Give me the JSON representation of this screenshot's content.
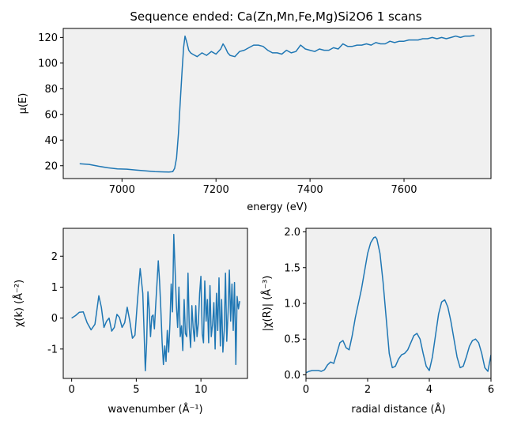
{
  "figure_title": "Sequence ended: Ca(Zn,Mn,Fe,Mg)Si2O6  1 scans",
  "chart_data": [
    {
      "id": "mu",
      "type": "line",
      "xlabel": "energy (eV)",
      "ylabel": "μ(E)",
      "xlim": [
        6875,
        7785
      ],
      "ylim": [
        10,
        127
      ],
      "xticks": [
        7000,
        7200,
        7400,
        7600
      ],
      "yticks": [
        20,
        40,
        60,
        80,
        100,
        120
      ],
      "grid": false,
      "color": "#1f77b4",
      "x": [
        6910,
        6930,
        6950,
        6970,
        6990,
        7010,
        7030,
        7050,
        7070,
        7090,
        7100,
        7108,
        7112,
        7116,
        7120,
        7124,
        7128,
        7131,
        7134,
        7138,
        7142,
        7146,
        7150,
        7160,
        7170,
        7180,
        7190,
        7200,
        7210,
        7215,
        7220,
        7225,
        7230,
        7240,
        7250,
        7260,
        7270,
        7280,
        7290,
        7300,
        7310,
        7320,
        7330,
        7340,
        7350,
        7360,
        7370,
        7380,
        7390,
        7400,
        7410,
        7420,
        7430,
        7440,
        7450,
        7460,
        7470,
        7480,
        7490,
        7500,
        7510,
        7520,
        7530,
        7540,
        7550,
        7560,
        7570,
        7580,
        7590,
        7600,
        7610,
        7620,
        7630,
        7640,
        7650,
        7660,
        7670,
        7680,
        7690,
        7700,
        7710,
        7720,
        7730,
        7740,
        7750
      ],
      "y": [
        21.5,
        21.0,
        19.6,
        18.4,
        17.6,
        17.3,
        16.6,
        16.0,
        15.4,
        15.2,
        15.1,
        15.4,
        18,
        26,
        45,
        70,
        95,
        112,
        121,
        116,
        110,
        108,
        107,
        105,
        108,
        106,
        109,
        107,
        111,
        115,
        112,
        108,
        106,
        105,
        109,
        110,
        112,
        114,
        114,
        113,
        110,
        108,
        108,
        107,
        110,
        108,
        109,
        114,
        111,
        110,
        109,
        111,
        110,
        110,
        112,
        111,
        115,
        113,
        113,
        114,
        114,
        115,
        114,
        116,
        115,
        115,
        117,
        116,
        117,
        117,
        118,
        118,
        118,
        119,
        119,
        120,
        119,
        120,
        119,
        120,
        121,
        120,
        121,
        121,
        121.5
      ]
    },
    {
      "id": "chik",
      "type": "line",
      "xlabel": "wavenumber (Å⁻¹)",
      "ylabel": "χ(k)  (Å⁻²)",
      "xlim": [
        -0.65,
        13.6
      ],
      "ylim": [
        -1.95,
        2.9
      ],
      "xticks": [
        0,
        5,
        10
      ],
      "yticks": [
        -1,
        0,
        1,
        2
      ],
      "grid": false,
      "color": "#1f77b4",
      "x": [
        0,
        0.3,
        0.6,
        0.9,
        1.2,
        1.5,
        1.8,
        2.1,
        2.3,
        2.5,
        2.7,
        2.9,
        3.1,
        3.3,
        3.5,
        3.7,
        3.9,
        4.1,
        4.3,
        4.5,
        4.7,
        4.9,
        5.1,
        5.3,
        5.5,
        5.6,
        5.7,
        5.8,
        5.9,
        6.0,
        6.1,
        6.2,
        6.3,
        6.4,
        6.5,
        6.6,
        6.7,
        6.8,
        6.9,
        7.0,
        7.1,
        7.2,
        7.3,
        7.4,
        7.5,
        7.6,
        7.7,
        7.8,
        7.9,
        8.0,
        8.1,
        8.2,
        8.3,
        8.4,
        8.5,
        8.6,
        8.7,
        8.8,
        8.9,
        9.0,
        9.1,
        9.2,
        9.3,
        9.4,
        9.5,
        9.6,
        9.7,
        9.8,
        9.9,
        10.0,
        10.1,
        10.2,
        10.3,
        10.4,
        10.5,
        10.6,
        10.7,
        10.8,
        10.9,
        11.0,
        11.1,
        11.2,
        11.3,
        11.4,
        11.5,
        11.6,
        11.7,
        11.8,
        11.9,
        12.0,
        12.1,
        12.2,
        12.3,
        12.4,
        12.5,
        12.6,
        12.7,
        12.8,
        12.9,
        13.0
      ],
      "y": [
        0,
        0.08,
        0.19,
        0.2,
        -0.15,
        -0.38,
        -0.2,
        0.72,
        0.35,
        -0.3,
        -0.1,
        0.0,
        -0.42,
        -0.3,
        0.12,
        0.02,
        -0.3,
        -0.15,
        0.35,
        -0.1,
        -0.65,
        -0.55,
        0.6,
        1.6,
        0.8,
        -0.4,
        -1.7,
        -0.8,
        0.85,
        0.3,
        -0.6,
        0.05,
        0.1,
        -0.35,
        0.4,
        1.1,
        1.85,
        1.2,
        0.3,
        -0.8,
        -1.5,
        -0.9,
        -1.4,
        -0.4,
        -1.1,
        -0.2,
        1.1,
        0.2,
        2.7,
        1.6,
        0.4,
        -0.3,
        1.0,
        -0.6,
        -0.25,
        -1.05,
        0.6,
        -0.5,
        -0.6,
        1.45,
        -0.3,
        -0.95,
        0.4,
        -0.3,
        -0.75,
        0.4,
        -0.6,
        -0.15,
        0.8,
        1.35,
        -0.5,
        -0.8,
        1.2,
        -0.1,
        0.6,
        -0.8,
        1.05,
        -0.6,
        -0.2,
        0.5,
        -1.0,
        0.8,
        -0.4,
        1.3,
        -0.9,
        0.6,
        -1.1,
        -0.4,
        1.45,
        -0.75,
        0.2,
        1.55,
        -0.1,
        1.1,
        -0.4,
        1.15,
        -1.5,
        0.7,
        0.3,
        0.55
      ]
    },
    {
      "id": "chir",
      "type": "line",
      "xlabel": "radial distance (Å)",
      "ylabel": "|χ(R)|  (Å⁻³)",
      "xlim": [
        0,
        6
      ],
      "ylim": [
        -0.05,
        2.05
      ],
      "xticks": [
        0,
        2,
        4,
        6
      ],
      "yticks": [
        0.0,
        0.5,
        1.0,
        1.5,
        2.0
      ],
      "ytick_labels": [
        "0.0",
        "0.5",
        "1.0",
        "1.5",
        "2.0"
      ],
      "grid": false,
      "color": "#1f77b4",
      "x": [
        0,
        0.1,
        0.2,
        0.3,
        0.4,
        0.5,
        0.6,
        0.7,
        0.8,
        0.9,
        1.0,
        1.1,
        1.2,
        1.3,
        1.4,
        1.5,
        1.6,
        1.7,
        1.8,
        1.9,
        2.0,
        2.1,
        2.2,
        2.25,
        2.3,
        2.4,
        2.5,
        2.6,
        2.7,
        2.8,
        2.9,
        3.0,
        3.1,
        3.2,
        3.3,
        3.4,
        3.5,
        3.6,
        3.7,
        3.8,
        3.9,
        4.0,
        4.1,
        4.2,
        4.3,
        4.4,
        4.5,
        4.6,
        4.7,
        4.8,
        4.9,
        5.0,
        5.1,
        5.2,
        5.3,
        5.4,
        5.5,
        5.6,
        5.7,
        5.8,
        5.9,
        6.0
      ],
      "y": [
        0.03,
        0.05,
        0.06,
        0.06,
        0.06,
        0.05,
        0.07,
        0.14,
        0.18,
        0.16,
        0.3,
        0.45,
        0.48,
        0.38,
        0.35,
        0.55,
        0.8,
        1.0,
        1.2,
        1.45,
        1.7,
        1.85,
        1.92,
        1.93,
        1.9,
        1.7,
        1.3,
        0.8,
        0.3,
        0.1,
        0.12,
        0.22,
        0.28,
        0.3,
        0.35,
        0.45,
        0.55,
        0.58,
        0.5,
        0.3,
        0.12,
        0.06,
        0.25,
        0.55,
        0.85,
        1.02,
        1.05,
        0.95,
        0.75,
        0.5,
        0.25,
        0.1,
        0.12,
        0.25,
        0.4,
        0.48,
        0.5,
        0.45,
        0.3,
        0.1,
        0.05,
        0.28
      ]
    }
  ]
}
